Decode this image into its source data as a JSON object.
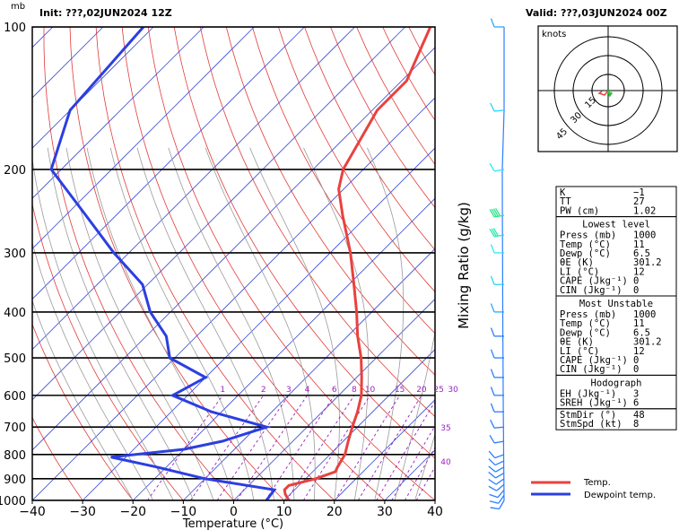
{
  "header": {
    "unit": "mb",
    "init": "Init: ???,02JUN2024 12Z",
    "valid": "Valid: ???,03JUN2024 00Z"
  },
  "axes": {
    "xlabel": "Temperature (°C)",
    "x_ticks": [
      "−40",
      "−30",
      "−20",
      "−10",
      "0",
      "10",
      "20",
      "30",
      "40"
    ],
    "x_values": [
      -40,
      -30,
      -20,
      -10,
      0,
      10,
      20,
      30,
      40
    ],
    "p_ticks": [
      "100",
      "200",
      "300",
      "400",
      "500",
      "600",
      "700",
      "800",
      "900",
      "1000"
    ],
    "p_values": [
      100,
      200,
      300,
      400,
      500,
      600,
      700,
      800,
      900,
      1000
    ],
    "mixing_ratio_label": "Mixing Ratio (g/kg)",
    "mixing_ratio_values": [
      "1",
      "2",
      "3",
      "4",
      "6",
      "8",
      "10",
      "15",
      "20",
      "25",
      "30",
      "35",
      "40"
    ]
  },
  "chart_data": {
    "type": "line",
    "title": "",
    "xlim": [
      -40,
      40
    ],
    "ylim": [
      100,
      1000
    ],
    "y_scale": "log (pressure)",
    "skew": "skew-T",
    "series": [
      {
        "name": "Temp.",
        "color": "#e8423e",
        "points": [
          [
            1000,
            11
          ],
          [
            970,
            9
          ],
          [
            950,
            8
          ],
          [
            930,
            8
          ],
          [
            900,
            12
          ],
          [
            870,
            14.5
          ],
          [
            850,
            14
          ],
          [
            800,
            13
          ],
          [
            750,
            11
          ],
          [
            700,
            9
          ],
          [
            650,
            7
          ],
          [
            600,
            4.5
          ],
          [
            550,
            1
          ],
          [
            500,
            -3
          ],
          [
            450,
            -8
          ],
          [
            400,
            -13
          ],
          [
            350,
            -19
          ],
          [
            300,
            -26
          ],
          [
            250,
            -35
          ],
          [
            220,
            -41
          ],
          [
            200,
            -44
          ],
          [
            150,
            -49
          ],
          [
            130,
            -49
          ],
          [
            100,
            -55
          ]
        ]
      },
      {
        "name": "Dewpoint temp.",
        "color": "#2b3fe0",
        "points": [
          [
            1000,
            6.5
          ],
          [
            950,
            6
          ],
          [
            900,
            -10
          ],
          [
            850,
            -22
          ],
          [
            810,
            -33
          ],
          [
            780,
            -20
          ],
          [
            750,
            -14
          ],
          [
            700,
            -8
          ],
          [
            650,
            -22
          ],
          [
            600,
            -33
          ],
          [
            550,
            -30
          ],
          [
            500,
            -41
          ],
          [
            450,
            -46
          ],
          [
            400,
            -54
          ],
          [
            350,
            -61
          ],
          [
            300,
            -73
          ],
          [
            250,
            -86
          ],
          [
            200,
            -102
          ],
          [
            150,
            -110
          ],
          [
            100,
            -112
          ]
        ]
      }
    ]
  },
  "legend": {
    "temp_label": "Temp.",
    "dew_label": "Dewpoint temp.",
    "temp_color": "#e8423e",
    "dew_color": "#2b3fe0"
  },
  "hodograph": {
    "unit_label": "knots",
    "rings": [
      "15",
      "30",
      "45"
    ]
  },
  "winds": [
    {
      "p": 1000,
      "dir": 210,
      "spd": 5,
      "color": "#2a7fff"
    },
    {
      "p": 975,
      "dir": 215,
      "spd": 5,
      "color": "#2a7fff"
    },
    {
      "p": 950,
      "dir": 220,
      "spd": 5,
      "color": "#2a7fff"
    },
    {
      "p": 925,
      "dir": 230,
      "spd": 5,
      "color": "#2a7fff"
    },
    {
      "p": 900,
      "dir": 235,
      "spd": 5,
      "color": "#2a7fff"
    },
    {
      "p": 875,
      "dir": 240,
      "spd": 5,
      "color": "#2a7fff"
    },
    {
      "p": 850,
      "dir": 240,
      "spd": 5,
      "color": "#2a7fff"
    },
    {
      "p": 825,
      "dir": 245,
      "spd": 5,
      "color": "#2a7fff"
    },
    {
      "p": 800,
      "dir": 250,
      "spd": 5,
      "color": "#2a7fff"
    },
    {
      "p": 750,
      "dir": 260,
      "spd": 10,
      "color": "#2a7fff"
    },
    {
      "p": 700,
      "dir": 265,
      "spd": 10,
      "color": "#2a7fff"
    },
    {
      "p": 650,
      "dir": 270,
      "spd": 10,
      "color": "#2a7fff"
    },
    {
      "p": 600,
      "dir": 270,
      "spd": 10,
      "color": "#2a7fff"
    },
    {
      "p": 550,
      "dir": 270,
      "spd": 10,
      "color": "#2a7fff"
    },
    {
      "p": 500,
      "dir": 270,
      "spd": 10,
      "color": "#2a7fff"
    },
    {
      "p": 450,
      "dir": 270,
      "spd": 10,
      "color": "#2a7fff"
    },
    {
      "p": 400,
      "dir": 270,
      "spd": 10,
      "color": "#2aaaff"
    },
    {
      "p": 350,
      "dir": 270,
      "spd": 10,
      "color": "#2ad4ff"
    },
    {
      "p": 300,
      "dir": 270,
      "spd": 10,
      "color": "#2ee8ff"
    },
    {
      "p": 275,
      "dir": 260,
      "spd": 30,
      "color": "#2ee8b0"
    },
    {
      "p": 250,
      "dir": 260,
      "spd": 35,
      "color": "#2ee88a"
    },
    {
      "p": 200,
      "dir": 260,
      "spd": 10,
      "color": "#2ee8ff"
    },
    {
      "p": 150,
      "dir": 265,
      "spd": 10,
      "color": "#2ad4ff"
    },
    {
      "p": 100,
      "dir": 270,
      "spd": 10,
      "color": "#2aaaff"
    }
  ],
  "indices": {
    "top": [
      {
        "label": "K",
        "value": "−1"
      },
      {
        "label": "TT",
        "value": "27"
      },
      {
        "label": "PW (cm)",
        "value": "1.02"
      }
    ],
    "lowest_title": "Lowest level",
    "lowest": [
      {
        "label": "Press (mb)",
        "value": "1000"
      },
      {
        "label": "Temp (°C)",
        "value": "11"
      },
      {
        "label": "Dewp (°C)",
        "value": "6.5"
      },
      {
        "label": "θE (K)",
        "value": "301.2"
      },
      {
        "label": "LI (°C)",
        "value": "12"
      },
      {
        "label": "CAPE (Jkg⁻¹)",
        "value": "0"
      },
      {
        "label": "CIN (Jkg⁻¹)",
        "value": "0"
      }
    ],
    "unstable_title": "Most Unstable",
    "unstable": [
      {
        "label": "Press (mb)",
        "value": "1000"
      },
      {
        "label": "Temp (°C)",
        "value": "11"
      },
      {
        "label": "Dewp (°C)",
        "value": "6.5"
      },
      {
        "label": "θE (K)",
        "value": "301.2"
      },
      {
        "label": "LI (°C)",
        "value": "12"
      },
      {
        "label": "CAPE (Jkg⁻¹)",
        "value": "0"
      },
      {
        "label": "CIN (Jkg⁻¹)",
        "value": "0"
      }
    ],
    "hodo_title": "Hodograph",
    "hodo": [
      {
        "label": "EH (Jkg⁻¹)",
        "value": "3"
      },
      {
        "label": "SREH (Jkg⁻¹)",
        "value": "6"
      }
    ],
    "storm": [
      {
        "label": "StmDir (°)",
        "value": "48"
      },
      {
        "label": "StmSpd (kt)",
        "value": "8"
      }
    ]
  }
}
